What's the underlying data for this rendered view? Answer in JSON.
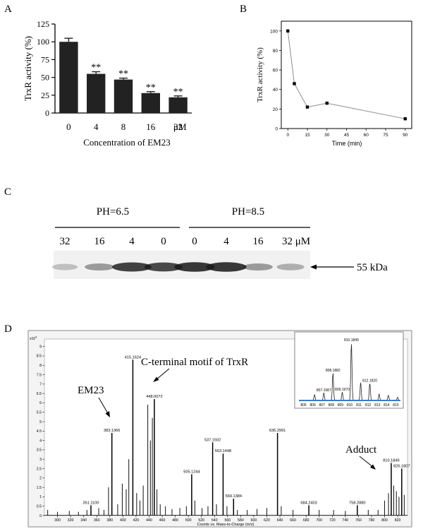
{
  "panel_labels": {
    "a": "A",
    "b": "B",
    "c": "C",
    "d": "D"
  },
  "chart_data": [
    {
      "id": "A",
      "type": "bar",
      "categories": [
        "0",
        "4",
        "8",
        "16",
        "32"
      ],
      "unit_suffix": "μM",
      "values": [
        100,
        55,
        47,
        28,
        22
      ],
      "errors": [
        5,
        3,
        2,
        2,
        2
      ],
      "significance": [
        "",
        "**",
        "**",
        "**",
        "**"
      ],
      "ylabel": "TrxR activity (%)",
      "xlabel": "Concentration of EM23",
      "ylim": [
        0,
        125
      ],
      "yticks": [
        0,
        25,
        50,
        75,
        100,
        125
      ],
      "bar_color": "#222222"
    },
    {
      "id": "B",
      "type": "line",
      "x": [
        0,
        5,
        15,
        30,
        90
      ],
      "y": [
        100,
        46,
        22,
        26,
        10
      ],
      "xlabel": "Time (min)",
      "ylabel": "TrxR activity (%)",
      "xlim": [
        -5,
        95
      ],
      "ylim": [
        0,
        110
      ],
      "xticks": [
        0,
        15,
        30,
        45,
        60,
        75,
        90
      ],
      "yticks": [
        0,
        20,
        40,
        60,
        80,
        100
      ]
    },
    {
      "id": "D",
      "type": "spectrum",
      "xlabel": "Counts vs. Mass-to-Charge (m/z)",
      "y_multiplier": "x10",
      "y_exponent": "4",
      "xlim": [
        280,
        835
      ],
      "ylim": [
        0,
        9.4
      ],
      "xticks": [
        300,
        320,
        340,
        360,
        380,
        400,
        420,
        440,
        460,
        480,
        500,
        520,
        540,
        560,
        580,
        600,
        620,
        640,
        660,
        680,
        700,
        720,
        740,
        760,
        780,
        800,
        820
      ],
      "yticks": [
        0,
        0.5,
        1,
        1.5,
        2,
        2.5,
        3,
        3.5,
        4,
        4.5,
        5,
        5.5,
        6,
        6.5,
        7,
        7.5,
        8,
        8.5,
        9
      ],
      "peaks": [
        {
          "mz": 351.11,
          "intensity": 0.55,
          "label": "351.1100"
        },
        {
          "mz": 383.1366,
          "intensity": 4.4,
          "label": "383.1366"
        },
        {
          "mz": 415.1624,
          "intensity": 8.3,
          "label": "415.1624"
        },
        {
          "mz": 448.0072,
          "intensity": 6.2,
          "label": "448.0072"
        },
        {
          "mz": 505.1244,
          "intensity": 2.2,
          "label": "505.1244"
        },
        {
          "mz": 537.1502,
          "intensity": 3.9,
          "label": "537.1502"
        },
        {
          "mz": 553.1448,
          "intensity": 3.3,
          "label": "553.1448"
        },
        {
          "mz": 569.1384,
          "intensity": 0.9,
          "label": "569.1384"
        },
        {
          "mz": 636.2991,
          "intensity": 4.4,
          "label": "636.2991"
        },
        {
          "mz": 684.2403,
          "intensity": 0.55,
          "label": "684.2403"
        },
        {
          "mz": 758.288,
          "intensity": 0.55,
          "label": "758.2880"
        },
        {
          "mz": 810.1849,
          "intensity": 2.8,
          "label": "810.1849"
        },
        {
          "mz": 826.1807,
          "intensity": 2.5,
          "label": "826.1807"
        }
      ],
      "minor_peaks": [
        {
          "mz": 285,
          "intensity": 0.3
        },
        {
          "mz": 300,
          "intensity": 0.2
        },
        {
          "mz": 318,
          "intensity": 0.25
        },
        {
          "mz": 332,
          "intensity": 0.2
        },
        {
          "mz": 345,
          "intensity": 0.3
        },
        {
          "mz": 363,
          "intensity": 0.4
        },
        {
          "mz": 371,
          "intensity": 0.3
        },
        {
          "mz": 378,
          "intensity": 1.5
        },
        {
          "mz": 392,
          "intensity": 0.6
        },
        {
          "mz": 399,
          "intensity": 1.7
        },
        {
          "mz": 405,
          "intensity": 1.4
        },
        {
          "mz": 409,
          "intensity": 3.0
        },
        {
          "mz": 421,
          "intensity": 1.2
        },
        {
          "mz": 426,
          "intensity": 0.8
        },
        {
          "mz": 431,
          "intensity": 1.6
        },
        {
          "mz": 438,
          "intensity": 5.9
        },
        {
          "mz": 442,
          "intensity": 4.0
        },
        {
          "mz": 445,
          "intensity": 5.2
        },
        {
          "mz": 452,
          "intensity": 1.4
        },
        {
          "mz": 457,
          "intensity": 0.6
        },
        {
          "mz": 465,
          "intensity": 0.5
        },
        {
          "mz": 475,
          "intensity": 0.35
        },
        {
          "mz": 487,
          "intensity": 0.4
        },
        {
          "mz": 497,
          "intensity": 0.5
        },
        {
          "mz": 510,
          "intensity": 0.8
        },
        {
          "mz": 521,
          "intensity": 0.4
        },
        {
          "mz": 530,
          "intensity": 0.5
        },
        {
          "mz": 543,
          "intensity": 0.6
        },
        {
          "mz": 559,
          "intensity": 0.5
        },
        {
          "mz": 575,
          "intensity": 0.3
        },
        {
          "mz": 590,
          "intensity": 0.3
        },
        {
          "mz": 605,
          "intensity": 0.35
        },
        {
          "mz": 620,
          "intensity": 0.4
        },
        {
          "mz": 642,
          "intensity": 0.5
        },
        {
          "mz": 660,
          "intensity": 0.3
        },
        {
          "mz": 700,
          "intensity": 0.3
        },
        {
          "mz": 722,
          "intensity": 0.3
        },
        {
          "mz": 740,
          "intensity": 0.25
        },
        {
          "mz": 775,
          "intensity": 0.3
        },
        {
          "mz": 790,
          "intensity": 0.3
        },
        {
          "mz": 800,
          "intensity": 0.8
        },
        {
          "mz": 806,
          "intensity": 1.2
        },
        {
          "mz": 814,
          "intensity": 1.6
        },
        {
          "mz": 818,
          "intensity": 1.3
        },
        {
          "mz": 822,
          "intensity": 1.0
        },
        {
          "mz": 830,
          "intensity": 1.1
        }
      ],
      "annotations": {
        "em23": "EM23",
        "cterm": "C-terminal motif of TrxR",
        "adduct": "Adduct"
      },
      "inset": {
        "xlim": [
          804.5,
          815.5
        ],
        "ylim": [
          0,
          10
        ],
        "xticks": [
          805,
          806,
          807,
          808,
          809,
          810,
          811,
          812,
          813,
          814,
          815
        ],
        "peaks": [
          {
            "mz": 806.19,
            "intensity": 0.9,
            "label": ""
          },
          {
            "mz": 807.1987,
            "intensity": 1.2,
            "label": "807.1987"
          },
          {
            "mz": 808.1882,
            "intensity": 4.3,
            "label": "808.1882"
          },
          {
            "mz": 809.197,
            "intensity": 1.3,
            "label": "809.1970"
          },
          {
            "mz": 810.1849,
            "intensity": 9.0,
            "label": "810.1849"
          },
          {
            "mz": 811.19,
            "intensity": 2.8,
            "label": ""
          },
          {
            "mz": 812.182,
            "intensity": 2.7,
            "label": "812.1820"
          },
          {
            "mz": 813.19,
            "intensity": 1.0,
            "label": ""
          },
          {
            "mz": 814.19,
            "intensity": 0.8,
            "label": ""
          },
          {
            "mz": 815.19,
            "intensity": 0.5,
            "label": ""
          }
        ],
        "baseline_color": "#3a7ec8"
      }
    }
  ],
  "gel": {
    "label": "PH=6.5",
    "label2": "PH=8.5",
    "lanes": [
      "32",
      "16",
      "4",
      "0",
      "0",
      "4",
      "16",
      "32 μM"
    ],
    "band_intensity": [
      0.15,
      0.35,
      0.85,
      0.8,
      0.9,
      0.9,
      0.35,
      0.25
    ],
    "marker_label": "55 kDa"
  }
}
